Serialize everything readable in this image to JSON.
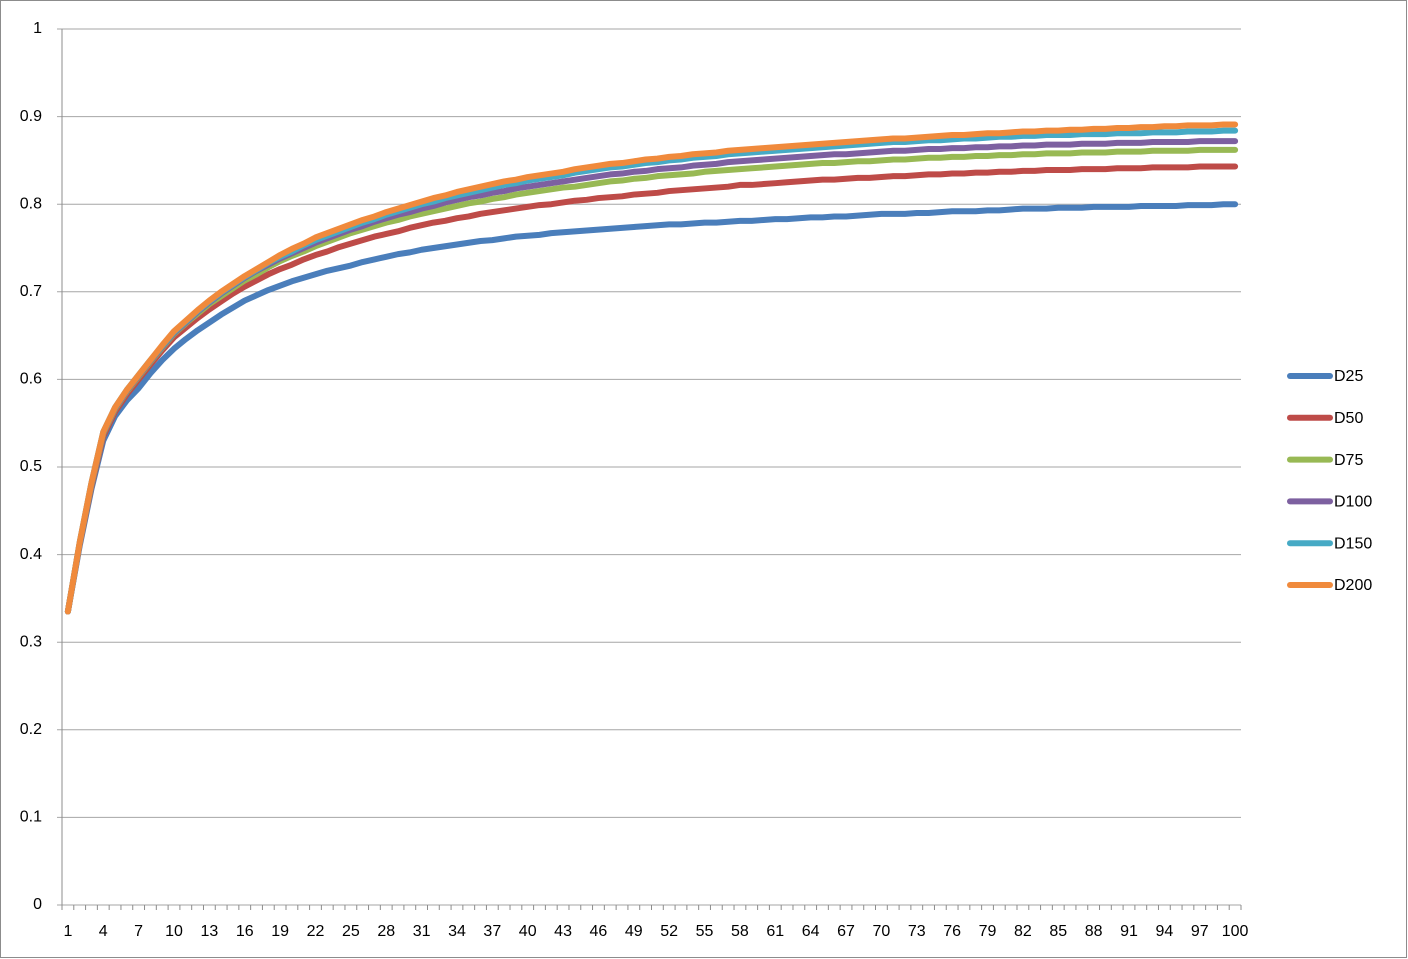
{
  "chart_data": {
    "type": "line",
    "categories": [
      1,
      null,
      null,
      4,
      null,
      null,
      7,
      null,
      null,
      10,
      null,
      null,
      13,
      null,
      null,
      16,
      null,
      null,
      19,
      null,
      null,
      22,
      null,
      null,
      25,
      null,
      null,
      28,
      null,
      null,
      31,
      null,
      null,
      34,
      null,
      null,
      37,
      null,
      null,
      40,
      null,
      null,
      43,
      null,
      null,
      46,
      null,
      null,
      49,
      null,
      null,
      52,
      null,
      null,
      55,
      null,
      null,
      58,
      null,
      null,
      61,
      null,
      null,
      64,
      null,
      null,
      67,
      null,
      null,
      70,
      null,
      null,
      73,
      null,
      null,
      76,
      null,
      null,
      79,
      null,
      null,
      82,
      null,
      null,
      85,
      null,
      null,
      88,
      null,
      null,
      91,
      null,
      null,
      94,
      null,
      null,
      97,
      null,
      null,
      100
    ],
    "series": [
      {
        "name": "D25",
        "color": "#4a7ebb",
        "values": [
          0.335,
          0.41,
          0.475,
          0.53,
          0.558,
          0.576,
          0.59,
          0.607,
          0.622,
          0.635,
          0.646,
          0.656,
          0.665,
          0.674,
          0.682,
          0.69,
          0.696,
          0.702,
          0.707,
          0.712,
          0.716,
          0.72,
          0.724,
          0.727,
          0.73,
          0.734,
          0.737,
          0.74,
          0.743,
          0.745,
          0.748,
          0.75,
          0.752,
          0.754,
          0.756,
          0.758,
          0.759,
          0.761,
          0.763,
          0.764,
          0.765,
          0.767,
          0.768,
          0.769,
          0.77,
          0.771,
          0.772,
          0.773,
          0.774,
          0.775,
          0.776,
          0.777,
          0.777,
          0.778,
          0.779,
          0.779,
          0.78,
          0.781,
          0.781,
          0.782,
          0.783,
          0.783,
          0.784,
          0.785,
          0.785,
          0.786,
          0.786,
          0.787,
          0.788,
          0.789,
          0.789,
          0.789,
          0.79,
          0.79,
          0.791,
          0.792,
          0.792,
          0.792,
          0.793,
          0.793,
          0.794,
          0.795,
          0.795,
          0.795,
          0.796,
          0.796,
          0.796,
          0.797,
          0.797,
          0.797,
          0.797,
          0.798,
          0.798,
          0.798,
          0.798,
          0.799,
          0.799,
          0.799,
          0.8,
          0.8
        ]
      },
      {
        "name": "D50",
        "color": "#be4b48",
        "values": [
          0.335,
          0.412,
          0.478,
          0.535,
          0.563,
          0.583,
          0.6,
          0.617,
          0.633,
          0.648,
          0.659,
          0.67,
          0.68,
          0.689,
          0.698,
          0.706,
          0.713,
          0.72,
          0.726,
          0.731,
          0.737,
          0.742,
          0.746,
          0.751,
          0.755,
          0.759,
          0.763,
          0.766,
          0.769,
          0.773,
          0.776,
          0.779,
          0.781,
          0.784,
          0.786,
          0.789,
          0.791,
          0.793,
          0.795,
          0.797,
          0.799,
          0.8,
          0.802,
          0.804,
          0.805,
          0.807,
          0.808,
          0.809,
          0.811,
          0.812,
          0.813,
          0.815,
          0.816,
          0.817,
          0.818,
          0.819,
          0.82,
          0.822,
          0.822,
          0.823,
          0.824,
          0.825,
          0.826,
          0.827,
          0.828,
          0.828,
          0.829,
          0.83,
          0.83,
          0.831,
          0.832,
          0.832,
          0.833,
          0.834,
          0.834,
          0.835,
          0.835,
          0.836,
          0.836,
          0.837,
          0.837,
          0.838,
          0.838,
          0.839,
          0.839,
          0.839,
          0.84,
          0.84,
          0.84,
          0.841,
          0.841,
          0.841,
          0.842,
          0.842,
          0.842,
          0.842,
          0.843,
          0.843,
          0.843,
          0.843
        ]
      },
      {
        "name": "D75",
        "color": "#98b954",
        "values": [
          0.335,
          0.413,
          0.48,
          0.538,
          0.566,
          0.586,
          0.603,
          0.62,
          0.636,
          0.652,
          0.664,
          0.675,
          0.686,
          0.695,
          0.704,
          0.713,
          0.72,
          0.728,
          0.735,
          0.741,
          0.746,
          0.752,
          0.757,
          0.762,
          0.767,
          0.771,
          0.775,
          0.779,
          0.782,
          0.786,
          0.789,
          0.792,
          0.795,
          0.798,
          0.801,
          0.803,
          0.806,
          0.808,
          0.811,
          0.813,
          0.815,
          0.817,
          0.819,
          0.82,
          0.822,
          0.824,
          0.826,
          0.827,
          0.829,
          0.83,
          0.832,
          0.833,
          0.834,
          0.835,
          0.837,
          0.838,
          0.839,
          0.84,
          0.841,
          0.842,
          0.843,
          0.844,
          0.845,
          0.846,
          0.847,
          0.847,
          0.848,
          0.849,
          0.849,
          0.85,
          0.851,
          0.851,
          0.852,
          0.853,
          0.853,
          0.854,
          0.854,
          0.855,
          0.855,
          0.856,
          0.856,
          0.857,
          0.857,
          0.858,
          0.858,
          0.858,
          0.859,
          0.859,
          0.859,
          0.86,
          0.86,
          0.86,
          0.861,
          0.861,
          0.861,
          0.861,
          0.862,
          0.862,
          0.862,
          0.862
        ]
      },
      {
        "name": "D100",
        "color": "#7d60a0",
        "values": [
          0.335,
          0.413,
          0.481,
          0.539,
          0.567,
          0.587,
          0.604,
          0.621,
          0.637,
          0.653,
          0.665,
          0.677,
          0.688,
          0.698,
          0.707,
          0.716,
          0.724,
          0.731,
          0.738,
          0.744,
          0.75,
          0.756,
          0.761,
          0.766,
          0.771,
          0.775,
          0.78,
          0.784,
          0.788,
          0.791,
          0.795,
          0.798,
          0.802,
          0.805,
          0.808,
          0.81,
          0.813,
          0.815,
          0.818,
          0.82,
          0.822,
          0.824,
          0.826,
          0.828,
          0.83,
          0.832,
          0.834,
          0.835,
          0.837,
          0.838,
          0.84,
          0.841,
          0.842,
          0.844,
          0.845,
          0.846,
          0.848,
          0.849,
          0.85,
          0.851,
          0.852,
          0.853,
          0.854,
          0.855,
          0.856,
          0.857,
          0.857,
          0.858,
          0.859,
          0.86,
          0.861,
          0.861,
          0.862,
          0.863,
          0.863,
          0.864,
          0.864,
          0.865,
          0.865,
          0.866,
          0.866,
          0.867,
          0.867,
          0.868,
          0.868,
          0.868,
          0.869,
          0.869,
          0.869,
          0.87,
          0.87,
          0.87,
          0.871,
          0.871,
          0.871,
          0.871,
          0.872,
          0.872,
          0.872,
          0.872
        ]
      },
      {
        "name": "D150",
        "color": "#46aac5",
        "values": [
          0.335,
          0.414,
          0.482,
          0.54,
          0.568,
          0.588,
          0.605,
          0.622,
          0.638,
          0.654,
          0.666,
          0.678,
          0.689,
          0.699,
          0.708,
          0.717,
          0.725,
          0.733,
          0.74,
          0.746,
          0.753,
          0.759,
          0.764,
          0.769,
          0.774,
          0.779,
          0.783,
          0.788,
          0.792,
          0.796,
          0.8,
          0.803,
          0.807,
          0.81,
          0.813,
          0.816,
          0.819,
          0.822,
          0.824,
          0.827,
          0.829,
          0.831,
          0.833,
          0.836,
          0.838,
          0.84,
          0.842,
          0.843,
          0.845,
          0.847,
          0.848,
          0.85,
          0.851,
          0.853,
          0.854,
          0.855,
          0.857,
          0.858,
          0.859,
          0.86,
          0.861,
          0.862,
          0.863,
          0.864,
          0.865,
          0.866,
          0.867,
          0.868,
          0.869,
          0.87,
          0.871,
          0.871,
          0.872,
          0.873,
          0.873,
          0.874,
          0.875,
          0.875,
          0.876,
          0.877,
          0.877,
          0.878,
          0.878,
          0.879,
          0.879,
          0.879,
          0.88,
          0.88,
          0.88,
          0.881,
          0.881,
          0.881,
          0.882,
          0.882,
          0.882,
          0.883,
          0.883,
          0.883,
          0.884,
          0.884
        ]
      },
      {
        "name": "D200",
        "color": "#f08a3c",
        "values": [
          0.335,
          0.414,
          0.482,
          0.54,
          0.568,
          0.588,
          0.605,
          0.622,
          0.639,
          0.655,
          0.667,
          0.679,
          0.69,
          0.7,
          0.709,
          0.718,
          0.726,
          0.734,
          0.742,
          0.749,
          0.755,
          0.762,
          0.767,
          0.772,
          0.777,
          0.782,
          0.786,
          0.791,
          0.795,
          0.799,
          0.803,
          0.807,
          0.81,
          0.814,
          0.817,
          0.82,
          0.823,
          0.826,
          0.828,
          0.831,
          0.833,
          0.835,
          0.837,
          0.84,
          0.842,
          0.844,
          0.846,
          0.847,
          0.849,
          0.851,
          0.852,
          0.854,
          0.855,
          0.857,
          0.858,
          0.859,
          0.861,
          0.862,
          0.863,
          0.864,
          0.865,
          0.866,
          0.867,
          0.868,
          0.869,
          0.87,
          0.871,
          0.872,
          0.873,
          0.874,
          0.875,
          0.875,
          0.876,
          0.877,
          0.878,
          0.879,
          0.879,
          0.88,
          0.881,
          0.881,
          0.882,
          0.883,
          0.883,
          0.884,
          0.884,
          0.885,
          0.885,
          0.886,
          0.886,
          0.887,
          0.887,
          0.888,
          0.888,
          0.889,
          0.889,
          0.89,
          0.89,
          0.89,
          0.891,
          0.891
        ]
      }
    ],
    "ylim": [
      0,
      1
    ],
    "yticks": [
      0,
      0.1,
      0.2,
      0.3,
      0.4,
      0.5,
      0.6,
      0.7,
      0.8,
      0.9,
      1
    ],
    "grid": true,
    "legend": "right"
  }
}
